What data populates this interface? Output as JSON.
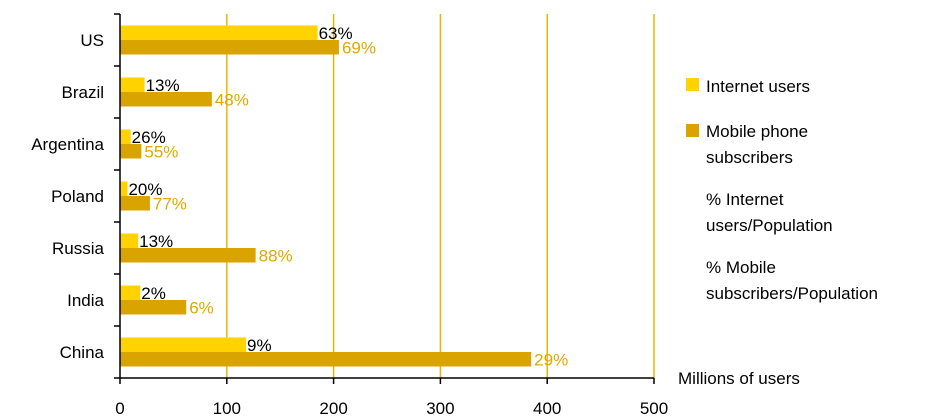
{
  "chart_data": {
    "type": "bar",
    "orientation": "horizontal",
    "categories": [
      "US",
      "Brazil",
      "Argentina",
      "Poland",
      "Russia",
      "India",
      "China"
    ],
    "series": [
      {
        "name": "Internet users",
        "values": [
          185,
          23,
          10,
          7,
          17,
          19,
          118
        ],
        "labels": [
          "63%",
          "13%",
          "26%",
          "20%",
          "13%",
          "2%",
          "9%"
        ],
        "color": "#ffd200"
      },
      {
        "name": "Mobile phone subscribers",
        "values": [
          205,
          86,
          20,
          28,
          127,
          62,
          385
        ],
        "labels": [
          "69%",
          "48%",
          "55%",
          "77%",
          "88%",
          "6%",
          "29%"
        ],
        "color": "#d9a300"
      }
    ],
    "xlabel": "Millions of users",
    "xlim": [
      0,
      500
    ],
    "xticks": [
      0,
      100,
      200,
      300,
      400,
      500
    ],
    "grid": "vertical",
    "legend": {
      "placement": "right",
      "items": [
        {
          "label": "Internet users",
          "swatch": "#ffd200",
          "text_color": "#000000"
        },
        {
          "label": "Mobile phone subscribers",
          "swatch": "#d9a300",
          "text_color": "#000000"
        },
        {
          "label": "% Internet users/Population",
          "swatch": null,
          "text_color": "#000000"
        },
        {
          "label": "% Mobile subscribers/Population",
          "swatch": null,
          "text_color": "#e0a800"
        }
      ]
    },
    "colors": {
      "grid": "#e6b800",
      "axis": "#000000",
      "gold_text": "#e0a800"
    }
  }
}
